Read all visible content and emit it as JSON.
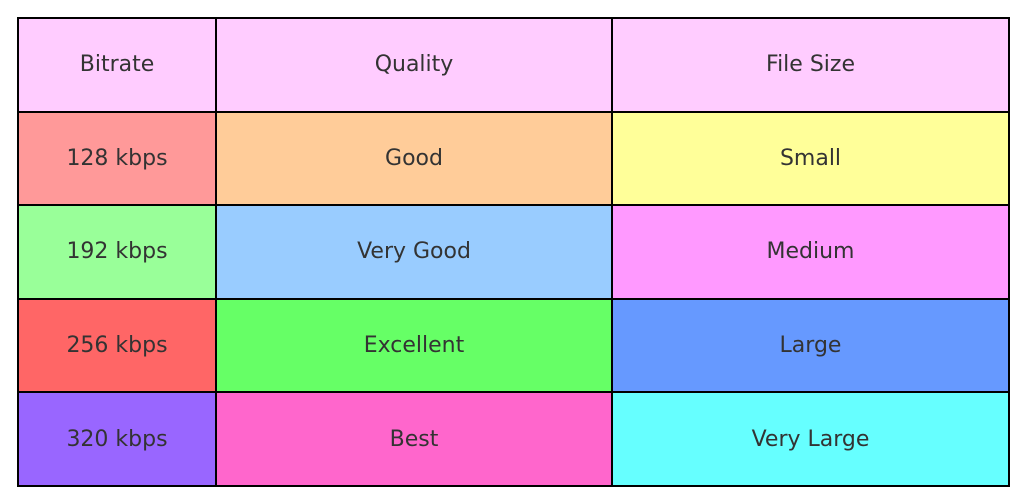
{
  "table": {
    "header": [
      "Bitrate",
      "Quality",
      "File Size"
    ],
    "rows": [
      [
        "128 kbps",
        "Good",
        "Small"
      ],
      [
        "192 kbps",
        "Very Good",
        "Medium"
      ],
      [
        "256 kbps",
        "Excellent",
        "Large"
      ],
      [
        "320 kbps",
        "Best",
        "Very Large"
      ]
    ]
  }
}
